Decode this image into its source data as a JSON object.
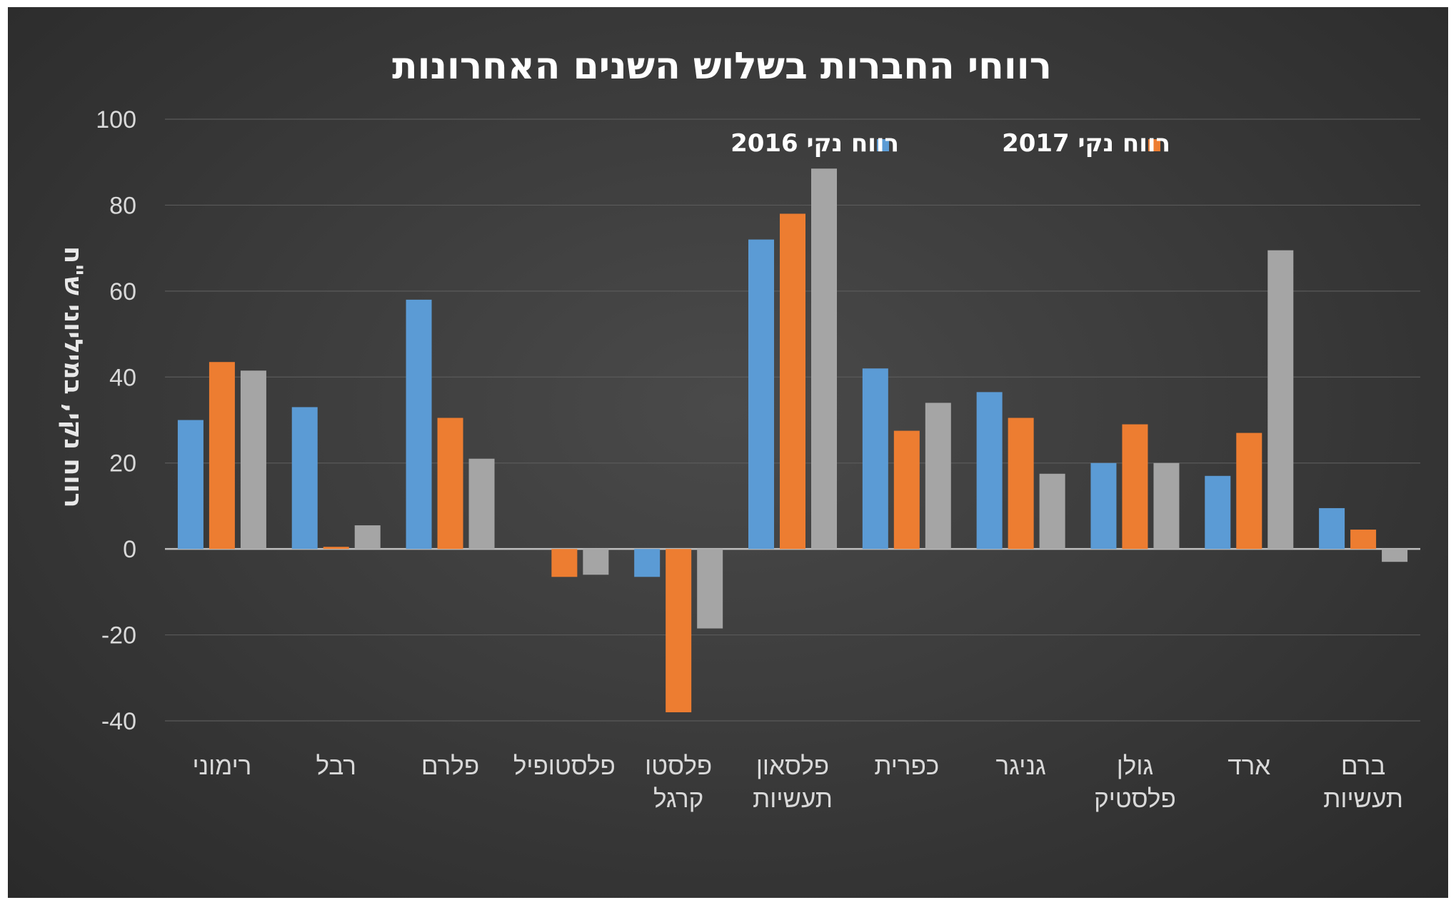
{
  "chart_data": {
    "type": "bar",
    "title": "רווחי החברות בשלוש השנים האחרונות",
    "ylabel": "רווח נקי, במיליוני ש\"ח",
    "xlabel": "",
    "ylim": [
      -40,
      100
    ],
    "yticks": [
      "100",
      "80",
      "60",
      "40",
      "20",
      "0",
      "-20",
      "-40"
    ],
    "ytick_values": [
      100,
      80,
      60,
      40,
      20,
      0,
      -20,
      -40
    ],
    "categories": [
      [
        "רימוני"
      ],
      [
        "רבל"
      ],
      [
        "פלרם"
      ],
      [
        "פלסטופיל"
      ],
      [
        "פלסטו",
        "קרגל"
      ],
      [
        "פלסאון",
        "תעשיות"
      ],
      [
        "כפרית"
      ],
      [
        "גניגר"
      ],
      [
        "גולן",
        "פלסטיק"
      ],
      [
        "ארד"
      ],
      [
        "ברם",
        "תעשיות"
      ]
    ],
    "series": [
      {
        "name": "רווח נקי 2016",
        "color": "#5b9bd5",
        "values": [
          30,
          33,
          58,
          0,
          -6.5,
          72,
          42,
          36.5,
          20,
          17,
          9.5
        ]
      },
      {
        "name": "רווח נקי 2017",
        "color": "#ed7d31",
        "values": [
          43.5,
          0.5,
          30.5,
          -6.5,
          -38,
          78,
          27.5,
          30.5,
          29,
          27,
          4.5
        ]
      },
      {
        "name": "",
        "color": "#a5a5a5",
        "values": [
          41.5,
          5.5,
          21,
          -6,
          -18.5,
          88.5,
          34,
          17.5,
          20,
          69.5,
          -3
        ]
      }
    ],
    "legend": {
      "position": "top-right",
      "entries": [
        "רווח נקי 2016",
        "רווח נקי 2017"
      ]
    },
    "grid": true
  }
}
